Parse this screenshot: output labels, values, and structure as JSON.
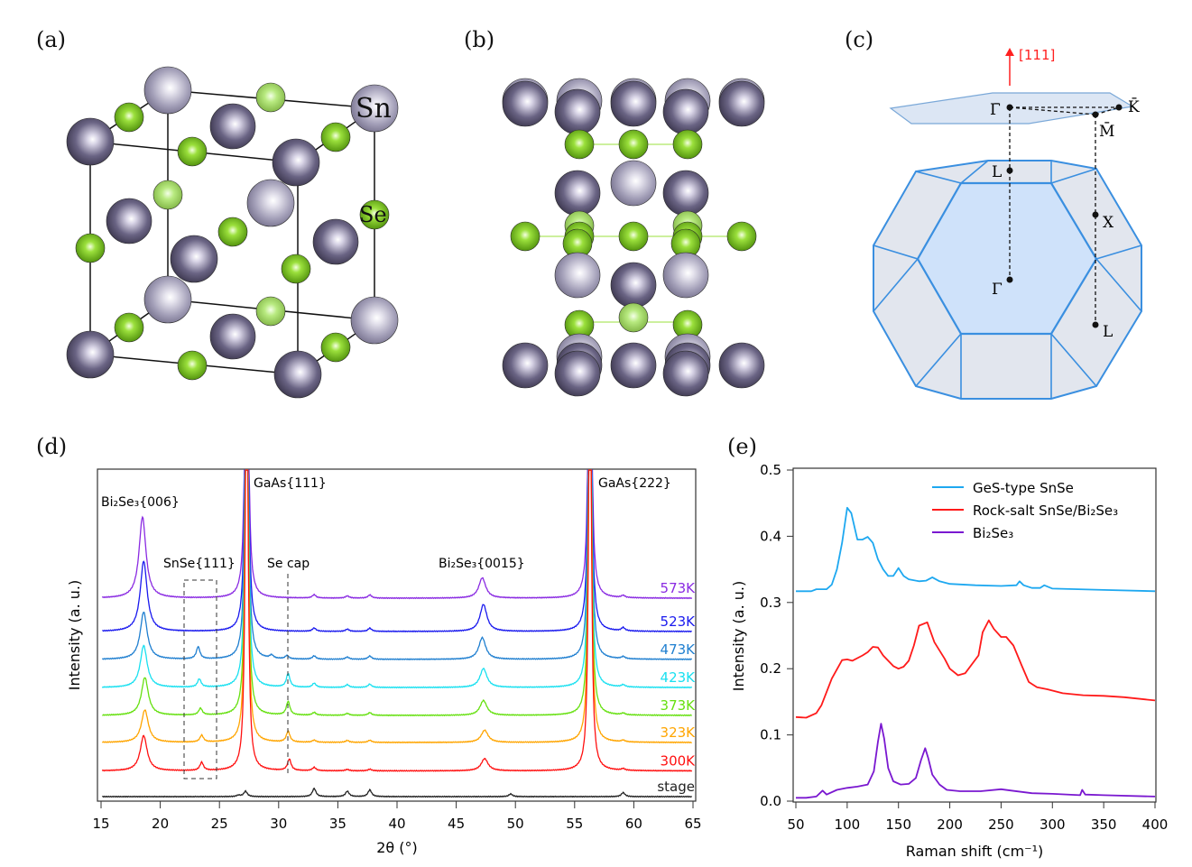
{
  "panel_labels": [
    "(a)",
    "(b)",
    "(c)",
    "(d)",
    "(e)"
  ],
  "panel_a": {
    "atom_labels": {
      "sn": "Sn",
      "se": "Se"
    },
    "colors": {
      "sn": "#5a5470",
      "sn_light": "#9b97b0",
      "se": "#7ccd1e"
    }
  },
  "panel_c": {
    "direction": "[111]",
    "points": [
      "Γ̄",
      "K̄",
      "M̄",
      "L",
      "X",
      "Γ",
      "L"
    ],
    "colors": {
      "zone": "#3a8fe0",
      "arrow": "#ff2020"
    }
  },
  "chart_data": [
    {
      "type": "line",
      "panel": "(d)",
      "xlabel": "2θ (°)",
      "ylabel": "Intensity (a. u.)",
      "xlim": [
        15,
        65
      ],
      "ylim": [
        0,
        12.1
      ],
      "xticks": [
        15,
        20,
        25,
        30,
        35,
        40,
        45,
        50,
        55,
        60,
        65
      ],
      "yticks_shown": false,
      "annotations": [
        "Bi₂Se₃{006}",
        "SnSe{111}",
        "Se cap",
        "GaAs{111}",
        "Bi₂Se₃{0015}",
        "GaAs{222}"
      ],
      "series": [
        {
          "name": "573K",
          "color": "#8a2be2",
          "offset": 7.33,
          "peaks": [
            [
              18.5,
              3.0
            ],
            [
              27.3,
              20
            ],
            [
              33.0,
              0.12
            ],
            [
              35.8,
              0.08
            ],
            [
              37.7,
              0.12
            ],
            [
              47.2,
              0.75
            ],
            [
              56.3,
              20
            ],
            [
              59.1,
              0.08
            ]
          ]
        },
        {
          "name": "523K",
          "color": "#1a1aee",
          "offset": 6.1,
          "peaks": [
            [
              18.6,
              2.6
            ],
            [
              27.3,
              20
            ],
            [
              33.0,
              0.12
            ],
            [
              35.8,
              0.08
            ],
            [
              37.7,
              0.12
            ],
            [
              47.3,
              1.0
            ],
            [
              56.3,
              20
            ],
            [
              59.1,
              0.12
            ]
          ]
        },
        {
          "name": "473K",
          "color": "#1f7fd0",
          "offset": 5.07,
          "peaks": [
            [
              18.6,
              1.75
            ],
            [
              23.2,
              0.45
            ],
            [
              27.3,
              20
            ],
            [
              29.4,
              0.12
            ],
            [
              30.7,
              0.12
            ],
            [
              33.0,
              0.12
            ],
            [
              35.8,
              0.08
            ],
            [
              37.7,
              0.12
            ],
            [
              47.2,
              0.8
            ],
            [
              56.3,
              20
            ],
            [
              59.1,
              0.08
            ]
          ]
        },
        {
          "name": "423K",
          "color": "#19e0f0",
          "offset": 4.03,
          "peaks": [
            [
              18.6,
              1.55
            ],
            [
              23.3,
              0.3
            ],
            [
              27.3,
              20
            ],
            [
              30.8,
              0.5
            ],
            [
              33.0,
              0.15
            ],
            [
              35.8,
              0.1
            ],
            [
              37.7,
              0.12
            ],
            [
              47.3,
              0.7
            ],
            [
              56.3,
              20
            ],
            [
              59.1,
              0.08
            ]
          ]
        },
        {
          "name": "373K",
          "color": "#66e010",
          "offset": 3.0,
          "peaks": [
            [
              18.7,
              1.4
            ],
            [
              23.4,
              0.25
            ],
            [
              27.3,
              20
            ],
            [
              30.8,
              0.5
            ],
            [
              33.0,
              0.1
            ],
            [
              35.8,
              0.07
            ],
            [
              37.7,
              0.1
            ],
            [
              47.3,
              0.55
            ],
            [
              56.3,
              20
            ],
            [
              59.1,
              0.06
            ]
          ]
        },
        {
          "name": "323K",
          "color": "#ffa500",
          "offset": 2.0,
          "peaks": [
            [
              18.7,
              1.2
            ],
            [
              23.5,
              0.25
            ],
            [
              27.3,
              20
            ],
            [
              30.8,
              0.4
            ],
            [
              33.0,
              0.08
            ],
            [
              35.8,
              0.07
            ],
            [
              37.7,
              0.08
            ],
            [
              47.4,
              0.45
            ],
            [
              56.3,
              20
            ],
            [
              59.1,
              0.06
            ]
          ]
        },
        {
          "name": "300K",
          "color": "#ff1010",
          "offset": 0.95,
          "peaks": [
            [
              18.6,
              1.3
            ],
            [
              23.5,
              0.3
            ],
            [
              27.3,
              20
            ],
            [
              30.9,
              0.42
            ],
            [
              33.0,
              0.12
            ],
            [
              35.8,
              0.05
            ],
            [
              37.7,
              0.06
            ],
            [
              47.4,
              0.45
            ],
            [
              56.3,
              20
            ],
            [
              59.1,
              0.06
            ]
          ]
        },
        {
          "name": "stage",
          "color": "#222222",
          "offset": 0,
          "peaks": [
            [
              26.6,
              0.05
            ],
            [
              27.2,
              0.2
            ],
            [
              33.0,
              0.3
            ],
            [
              35.8,
              0.2
            ],
            [
              37.7,
              0.25
            ],
            [
              49.6,
              0.1
            ],
            [
              59.1,
              0.15
            ]
          ]
        }
      ]
    },
    {
      "type": "line",
      "panel": "(e)",
      "xlabel": "Raman shift (cm⁻¹)",
      "ylabel": "Intensity (a. u.)",
      "xlim": [
        50,
        400
      ],
      "ylim": [
        0,
        0.5
      ],
      "xticks": [
        50,
        100,
        150,
        200,
        250,
        300,
        350,
        400
      ],
      "yticks": [
        "0.0",
        "0.1",
        "0.2",
        "0.3",
        "0.4",
        "0.5"
      ],
      "legend_position": "top-right",
      "series": [
        {
          "name": "GeS-type SnSe",
          "color": "#1ea8f0",
          "points": [
            [
              50,
              0.317
            ],
            [
              65,
              0.317
            ],
            [
              70,
              0.32
            ],
            [
              80,
              0.32
            ],
            [
              85,
              0.327
            ],
            [
              90,
              0.35
            ],
            [
              95,
              0.39
            ],
            [
              100,
              0.443
            ],
            [
              104,
              0.435
            ],
            [
              110,
              0.395
            ],
            [
              115,
              0.395
            ],
            [
              120,
              0.399
            ],
            [
              125,
              0.39
            ],
            [
              130,
              0.365
            ],
            [
              135,
              0.35
            ],
            [
              140,
              0.34
            ],
            [
              145,
              0.34
            ],
            [
              150,
              0.352
            ],
            [
              155,
              0.34
            ],
            [
              160,
              0.335
            ],
            [
              170,
              0.332
            ],
            [
              177,
              0.333
            ],
            [
              183,
              0.338
            ],
            [
              190,
              0.332
            ],
            [
              200,
              0.328
            ],
            [
              225,
              0.326
            ],
            [
              250,
              0.325
            ],
            [
              265,
              0.326
            ],
            [
              268,
              0.332
            ],
            [
              272,
              0.326
            ],
            [
              280,
              0.322
            ],
            [
              288,
              0.322
            ],
            [
              292,
              0.326
            ],
            [
              300,
              0.321
            ],
            [
              350,
              0.319
            ],
            [
              400,
              0.317
            ]
          ]
        },
        {
          "name": "Rock-salt SnSe/Bi₂Se₃",
          "color": "#ff1a1a",
          "points": [
            [
              50,
              0.127
            ],
            [
              60,
              0.126
            ],
            [
              70,
              0.133
            ],
            [
              75,
              0.145
            ],
            [
              85,
              0.185
            ],
            [
              95,
              0.213
            ],
            [
              100,
              0.214
            ],
            [
              105,
              0.212
            ],
            [
              115,
              0.22
            ],
            [
              120,
              0.225
            ],
            [
              125,
              0.233
            ],
            [
              130,
              0.232
            ],
            [
              135,
              0.22
            ],
            [
              145,
              0.204
            ],
            [
              150,
              0.2
            ],
            [
              155,
              0.203
            ],
            [
              160,
              0.212
            ],
            [
              165,
              0.235
            ],
            [
              170,
              0.265
            ],
            [
              178,
              0.27
            ],
            [
              185,
              0.24
            ],
            [
              195,
              0.215
            ],
            [
              200,
              0.2
            ],
            [
              208,
              0.19
            ],
            [
              215,
              0.193
            ],
            [
              228,
              0.22
            ],
            [
              232,
              0.255
            ],
            [
              238,
              0.273
            ],
            [
              243,
              0.26
            ],
            [
              250,
              0.248
            ],
            [
              255,
              0.248
            ],
            [
              262,
              0.235
            ],
            [
              270,
              0.205
            ],
            [
              277,
              0.18
            ],
            [
              285,
              0.172
            ],
            [
              295,
              0.169
            ],
            [
              310,
              0.163
            ],
            [
              330,
              0.16
            ],
            [
              350,
              0.159
            ],
            [
              370,
              0.157
            ],
            [
              400,
              0.152
            ]
          ]
        },
        {
          "name": "Bi₂Se₃",
          "color": "#7a18d0",
          "points": [
            [
              50,
              0.005
            ],
            [
              60,
              0.005
            ],
            [
              70,
              0.007
            ],
            [
              76,
              0.016
            ],
            [
              80,
              0.01
            ],
            [
              90,
              0.017
            ],
            [
              100,
              0.02
            ],
            [
              110,
              0.022
            ],
            [
              120,
              0.025
            ],
            [
              126,
              0.045
            ],
            [
              130,
              0.09
            ],
            [
              133,
              0.117
            ],
            [
              136,
              0.095
            ],
            [
              140,
              0.05
            ],
            [
              145,
              0.03
            ],
            [
              152,
              0.025
            ],
            [
              160,
              0.026
            ],
            [
              167,
              0.035
            ],
            [
              172,
              0.062
            ],
            [
              176,
              0.08
            ],
            [
              179,
              0.065
            ],
            [
              183,
              0.04
            ],
            [
              190,
              0.025
            ],
            [
              197,
              0.017
            ],
            [
              210,
              0.015
            ],
            [
              230,
              0.015
            ],
            [
              250,
              0.018
            ],
            [
              260,
              0.016
            ],
            [
              280,
              0.012
            ],
            [
              300,
              0.011
            ],
            [
              327,
              0.009
            ],
            [
              329,
              0.017
            ],
            [
              332,
              0.01
            ],
            [
              350,
              0.009
            ],
            [
              400,
              0.007
            ]
          ]
        }
      ]
    }
  ]
}
